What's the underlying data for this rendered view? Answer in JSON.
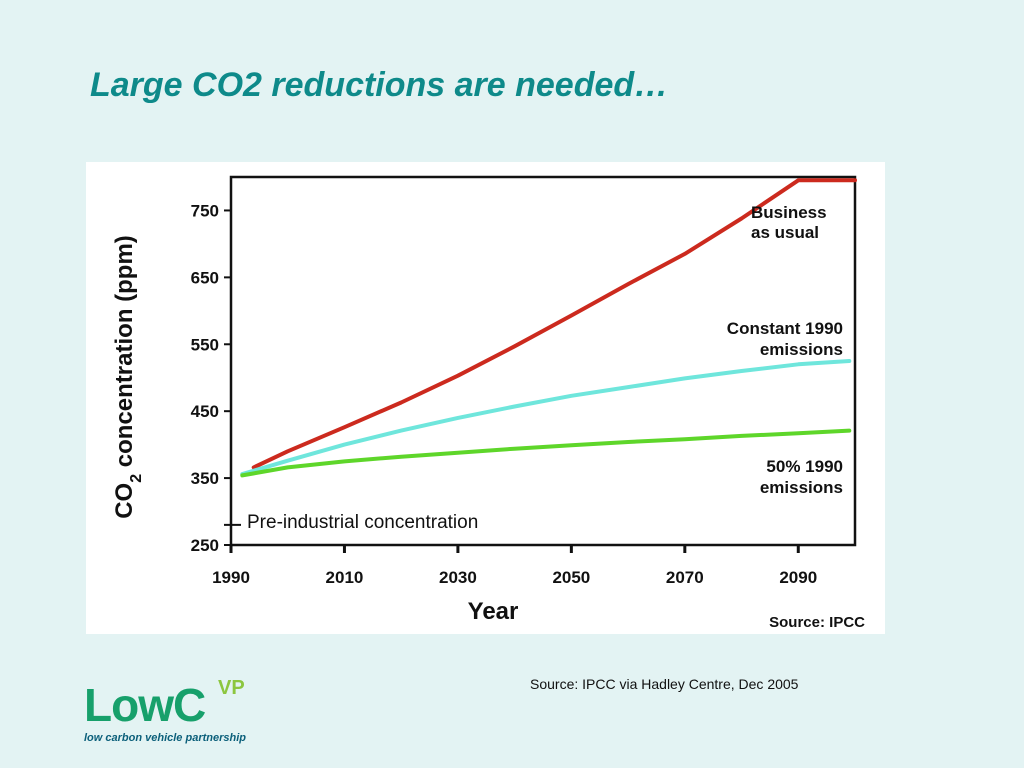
{
  "slide": {
    "title": "Large CO2 reductions are needed…",
    "source_note": "Source: IPCC via Hadley Centre, Dec 2005"
  },
  "logo": {
    "main": "LowC",
    "sup": "VP",
    "tagline": "low carbon vehicle partnership"
  },
  "chart_data": {
    "type": "line",
    "xlabel": "Year",
    "ylabel_main": "CO",
    "ylabel_sub": "2",
    "ylabel_rest": " concentration (ppm)",
    "xlim": [
      1990,
      2100
    ],
    "ylim": [
      250,
      800
    ],
    "x_ticks": [
      1990,
      2010,
      2030,
      2050,
      2070,
      2090
    ],
    "y_ticks": [
      250,
      350,
      450,
      550,
      650,
      750
    ],
    "grid": false,
    "source": "Source: IPCC",
    "reference_line": {
      "label": "Pre-industrial concentration",
      "value": 280
    },
    "series": [
      {
        "label_lines": [
          "Business",
          "as usual"
        ],
        "color": "#cc2a1e",
        "points": [
          [
            1994,
            366
          ],
          [
            2000,
            390
          ],
          [
            2010,
            426
          ],
          [
            2020,
            463
          ],
          [
            2030,
            503
          ],
          [
            2040,
            547
          ],
          [
            2050,
            593
          ],
          [
            2060,
            640
          ],
          [
            2070,
            685
          ],
          [
            2080,
            738
          ],
          [
            2090,
            795
          ],
          [
            2100,
            795
          ]
        ]
      },
      {
        "label_lines": [
          "Constant 1990",
          "emissions"
        ],
        "color": "#6fe6dc",
        "points": [
          [
            1992,
            356
          ],
          [
            2000,
            376
          ],
          [
            2010,
            400
          ],
          [
            2020,
            421
          ],
          [
            2030,
            440
          ],
          [
            2040,
            457
          ],
          [
            2050,
            473
          ],
          [
            2060,
            486
          ],
          [
            2070,
            499
          ],
          [
            2080,
            510
          ],
          [
            2090,
            520
          ],
          [
            2099,
            525
          ]
        ]
      },
      {
        "label_lines": [
          "50% 1990",
          "emissions"
        ],
        "color": "#5ed62a",
        "points": [
          [
            1992,
            354
          ],
          [
            2000,
            366
          ],
          [
            2010,
            375
          ],
          [
            2020,
            382
          ],
          [
            2030,
            388
          ],
          [
            2040,
            394
          ],
          [
            2050,
            399
          ],
          [
            2060,
            404
          ],
          [
            2070,
            408
          ],
          [
            2080,
            413
          ],
          [
            2090,
            417
          ],
          [
            2099,
            421
          ]
        ]
      }
    ]
  }
}
